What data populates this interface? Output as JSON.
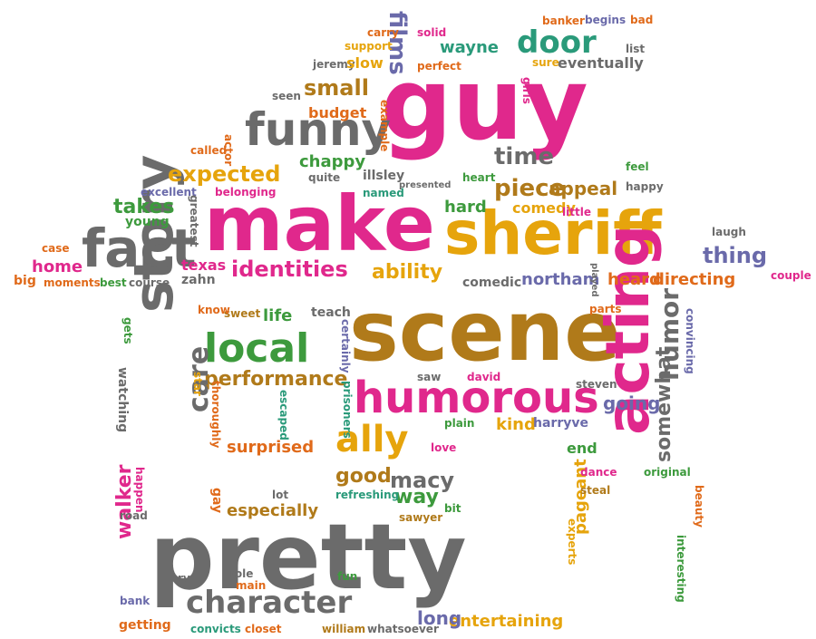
{
  "palette": {
    "pink": "#e0288c",
    "gold": "#e6a40c",
    "grey": "#6b6b6b",
    "green": "#3d9a3d",
    "orange": "#e06a1a",
    "purple": "#6a6aaa",
    "brown": "#b07a1a",
    "teal": "#2a9a7a",
    "black": "#444444"
  },
  "words": [
    {
      "t": "guy",
      "c": "pink"
    },
    {
      "t": "make",
      "c": "pink"
    },
    {
      "t": "sheriff",
      "c": "gold"
    },
    {
      "t": "scene",
      "c": "brown"
    },
    {
      "t": "pretty",
      "c": "grey"
    },
    {
      "t": "acting",
      "c": "pink"
    },
    {
      "t": "story",
      "c": "grey"
    },
    {
      "t": "fact",
      "c": "grey"
    },
    {
      "t": "funny",
      "c": "grey"
    },
    {
      "t": "humorous",
      "c": "pink"
    },
    {
      "t": "local",
      "c": "green"
    },
    {
      "t": "character",
      "c": "grey"
    },
    {
      "t": "ally",
      "c": "gold"
    },
    {
      "t": "door",
      "c": "teal"
    },
    {
      "t": "small",
      "c": "brown"
    },
    {
      "t": "films",
      "c": "purple"
    },
    {
      "t": "wayne",
      "c": "teal"
    },
    {
      "t": "expected",
      "c": "gold"
    },
    {
      "t": "time",
      "c": "grey"
    },
    {
      "t": "identities",
      "c": "pink"
    },
    {
      "t": "ability",
      "c": "gold"
    },
    {
      "t": "piece",
      "c": "brown"
    },
    {
      "t": "appeal",
      "c": "brown"
    },
    {
      "t": "thing",
      "c": "purple"
    },
    {
      "t": "takes",
      "c": "green"
    },
    {
      "t": "performance",
      "c": "brown"
    },
    {
      "t": "humor",
      "c": "grey"
    },
    {
      "t": "somewhat",
      "c": "grey"
    },
    {
      "t": "care",
      "c": "grey"
    },
    {
      "t": "macy",
      "c": "grey"
    },
    {
      "t": "good",
      "c": "brown"
    },
    {
      "t": "way",
      "c": "green"
    },
    {
      "t": "pageant",
      "c": "gold"
    },
    {
      "t": "walker",
      "c": "pink"
    },
    {
      "t": "going",
      "c": "purple"
    },
    {
      "t": "life",
      "c": "green"
    },
    {
      "t": "surprised",
      "c": "orange"
    },
    {
      "t": "especially",
      "c": "brown"
    },
    {
      "t": "entertaining",
      "c": "gold"
    },
    {
      "t": "long",
      "c": "purple"
    },
    {
      "t": "home",
      "c": "pink"
    },
    {
      "t": "texas",
      "c": "pink"
    },
    {
      "t": "zahn",
      "c": "grey"
    },
    {
      "t": "heard",
      "c": "orange"
    },
    {
      "t": "directing",
      "c": "orange"
    },
    {
      "t": "northam",
      "c": "purple"
    },
    {
      "t": "comedic",
      "c": "grey"
    },
    {
      "t": "comedy",
      "c": "gold"
    },
    {
      "t": "hard",
      "c": "green"
    },
    {
      "t": "chappy",
      "c": "green"
    },
    {
      "t": "budget",
      "c": "orange"
    },
    {
      "t": "eventually",
      "c": "grey"
    },
    {
      "t": "jeremy",
      "c": "grey"
    },
    {
      "t": "slow",
      "c": "gold"
    },
    {
      "t": "perfect",
      "c": "orange"
    },
    {
      "t": "watching",
      "c": "grey"
    },
    {
      "t": "kind",
      "c": "gold"
    },
    {
      "t": "end",
      "c": "green"
    },
    {
      "t": "teach",
      "c": "grey"
    },
    {
      "t": "sweet",
      "c": "brown"
    },
    {
      "t": "quite",
      "c": "grey"
    },
    {
      "t": "illsley",
      "c": "grey"
    },
    {
      "t": "named",
      "c": "teal"
    },
    {
      "t": "presented",
      "c": "grey"
    },
    {
      "t": "heart",
      "c": "green"
    },
    {
      "t": "excellent",
      "c": "purple"
    },
    {
      "t": "belonging",
      "c": "pink"
    },
    {
      "t": "young",
      "c": "green"
    },
    {
      "t": "greatest",
      "c": "grey"
    },
    {
      "t": "called",
      "c": "orange"
    },
    {
      "t": "actor",
      "c": "orange"
    },
    {
      "t": "seen",
      "c": "grey"
    },
    {
      "t": "example",
      "c": "orange"
    },
    {
      "t": "support",
      "c": "gold"
    },
    {
      "t": "carry",
      "c": "orange"
    },
    {
      "t": "solid",
      "c": "pink"
    },
    {
      "t": "banker",
      "c": "orange"
    },
    {
      "t": "begins",
      "c": "purple"
    },
    {
      "t": "bad",
      "c": "orange"
    },
    {
      "t": "list",
      "c": "grey"
    },
    {
      "t": "sure",
      "c": "gold"
    },
    {
      "t": "girls",
      "c": "pink"
    },
    {
      "t": "feel",
      "c": "green"
    },
    {
      "t": "happy",
      "c": "grey"
    },
    {
      "t": "little",
      "c": "pink"
    },
    {
      "t": "laugh",
      "c": "grey"
    },
    {
      "t": "played",
      "c": "grey"
    },
    {
      "t": "couple",
      "c": "pink"
    },
    {
      "t": "case",
      "c": "orange"
    },
    {
      "t": "big",
      "c": "orange"
    },
    {
      "t": "moments",
      "c": "orange"
    },
    {
      "t": "best",
      "c": "green"
    },
    {
      "t": "course",
      "c": "grey"
    },
    {
      "t": "know",
      "c": "orange"
    },
    {
      "t": "gets",
      "c": "green"
    },
    {
      "t": "star",
      "c": "gold"
    },
    {
      "t": "thoroughly",
      "c": "orange"
    },
    {
      "t": "escaped",
      "c": "teal"
    },
    {
      "t": "certainly",
      "c": "purple"
    },
    {
      "t": "prisoners",
      "c": "teal"
    },
    {
      "t": "saw",
      "c": "grey"
    },
    {
      "t": "david",
      "c": "pink"
    },
    {
      "t": "steven",
      "c": "grey"
    },
    {
      "t": "parts",
      "c": "orange"
    },
    {
      "t": "convincing",
      "c": "purple"
    },
    {
      "t": "plain",
      "c": "green"
    },
    {
      "t": "harryve",
      "c": "purple"
    },
    {
      "t": "love",
      "c": "pink"
    },
    {
      "t": "dance",
      "c": "pink"
    },
    {
      "t": "original",
      "c": "green"
    },
    {
      "t": "steal",
      "c": "brown"
    },
    {
      "t": "beauty",
      "c": "orange"
    },
    {
      "t": "experts",
      "c": "gold"
    },
    {
      "t": "interesting",
      "c": "green"
    },
    {
      "t": "happen",
      "c": "pink"
    },
    {
      "t": "gay",
      "c": "orange"
    },
    {
      "t": "lot",
      "c": "grey"
    },
    {
      "t": "refreshing",
      "c": "teal"
    },
    {
      "t": "bit",
      "c": "green"
    },
    {
      "t": "sawyer",
      "c": "brown"
    },
    {
      "t": "road",
      "c": "grey"
    },
    {
      "t": "rv",
      "c": "grey"
    },
    {
      "t": "role",
      "c": "grey"
    },
    {
      "t": "main",
      "c": "orange"
    },
    {
      "t": "fun",
      "c": "green"
    },
    {
      "t": "bank",
      "c": "purple"
    },
    {
      "t": "getting",
      "c": "orange"
    },
    {
      "t": "convicts",
      "c": "teal"
    },
    {
      "t": "closet",
      "c": "orange"
    },
    {
      "t": "william",
      "c": "brown"
    },
    {
      "t": "whatsoever",
      "c": "grey"
    }
  ]
}
